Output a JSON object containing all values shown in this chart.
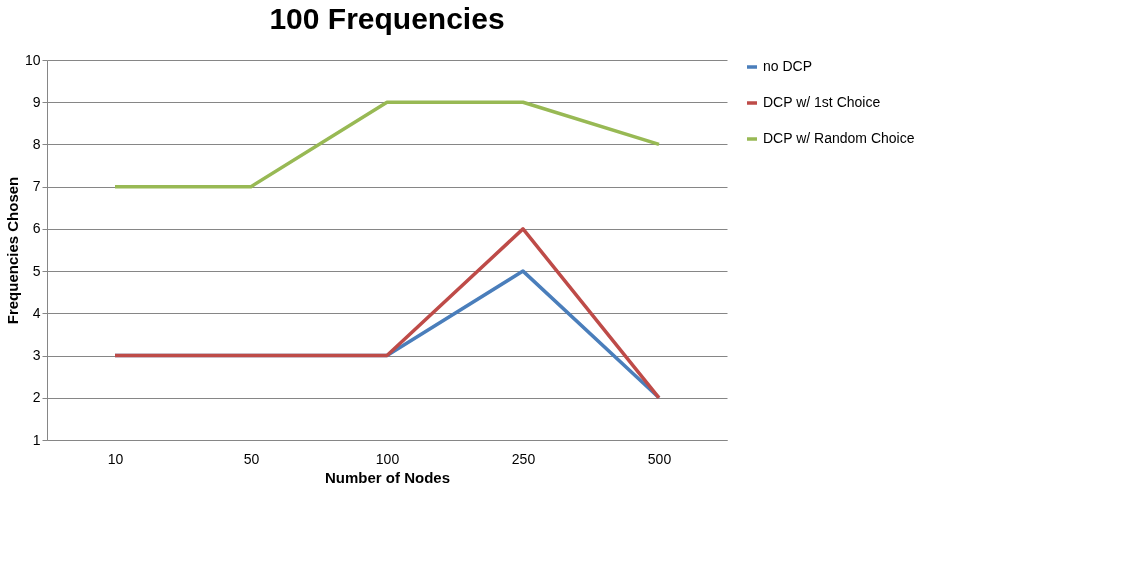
{
  "chart_data": {
    "type": "line",
    "title": "100 Frequencies",
    "xlabel": "Number of Nodes",
    "ylabel": "Frequencies Chosen",
    "categories": [
      "10",
      "50",
      "100",
      "250",
      "500"
    ],
    "series": [
      {
        "name": "no DCP",
        "color": "#4a7ebb",
        "values": [
          3,
          3,
          3,
          5,
          2
        ]
      },
      {
        "name": "DCP w/ 1st Choice",
        "color": "#be4b48",
        "values": [
          3,
          3,
          3,
          6,
          2
        ]
      },
      {
        "name": "DCP w/ Random Choice",
        "color": "#98b954",
        "values": [
          7,
          7,
          9,
          9,
          8
        ]
      }
    ],
    "ylim": [
      1,
      10
    ],
    "yticks": [
      1,
      2,
      3,
      4,
      5,
      6,
      7,
      8,
      9,
      10
    ],
    "grid": "y",
    "legend": "right",
    "marker": "none",
    "line_style": "solid"
  }
}
